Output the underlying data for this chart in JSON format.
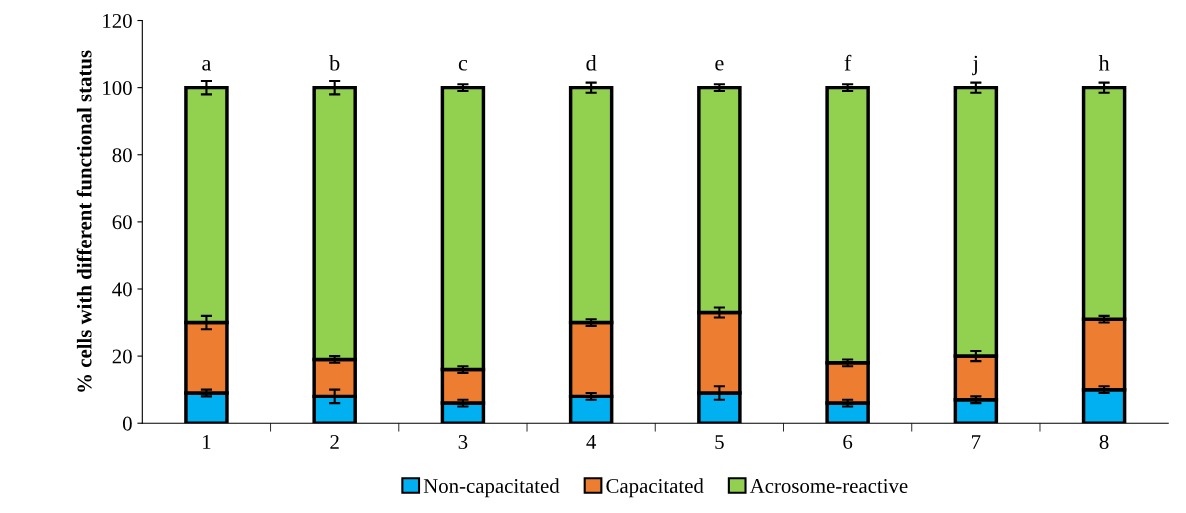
{
  "chart_data": {
    "type": "bar",
    "stacked": true,
    "ylabel": "% cells with different functional status",
    "categories": [
      "1",
      "2",
      "3",
      "4",
      "5",
      "6",
      "7",
      "8"
    ],
    "series": [
      {
        "name": "Non-capacitated",
        "color": "#00b0f0",
        "values": [
          9,
          8,
          6,
          8,
          9,
          6,
          7,
          10
        ],
        "errors": [
          1,
          2,
          1,
          1,
          2,
          1,
          1,
          1
        ]
      },
      {
        "name": "Capacitated",
        "color": "#ed7d31",
        "values": [
          21,
          11,
          10,
          22,
          24,
          12,
          13,
          21
        ],
        "errors": [
          2,
          1,
          1,
          1,
          1.5,
          1,
          1.5,
          1
        ]
      },
      {
        "name": "Acrosome-reactive",
        "color": "#92d050",
        "values": [
          70,
          81,
          84,
          70,
          67,
          82,
          80,
          69
        ],
        "errors": [
          2,
          2,
          1,
          1.5,
          1,
          1,
          1.5,
          1.5
        ]
      }
    ],
    "ylim": [
      0,
      120
    ],
    "yticks": [
      0,
      20,
      40,
      60,
      80,
      100,
      120
    ],
    "grid": false,
    "legend": "bottom",
    "annotations": [
      {
        "text": "a",
        "x": "1",
        "y": 100
      },
      {
        "text": "b",
        "x": "2",
        "y": 100
      },
      {
        "text": "c",
        "x": "3",
        "y": 100
      },
      {
        "text": "d",
        "x": "4",
        "y": 100
      },
      {
        "text": "e",
        "x": "5",
        "y": 100
      },
      {
        "text": "f",
        "x": "6",
        "y": 100
      },
      {
        "text": "j",
        "x": "7",
        "y": 100
      },
      {
        "text": "h",
        "x": "8",
        "y": 100
      }
    ]
  }
}
